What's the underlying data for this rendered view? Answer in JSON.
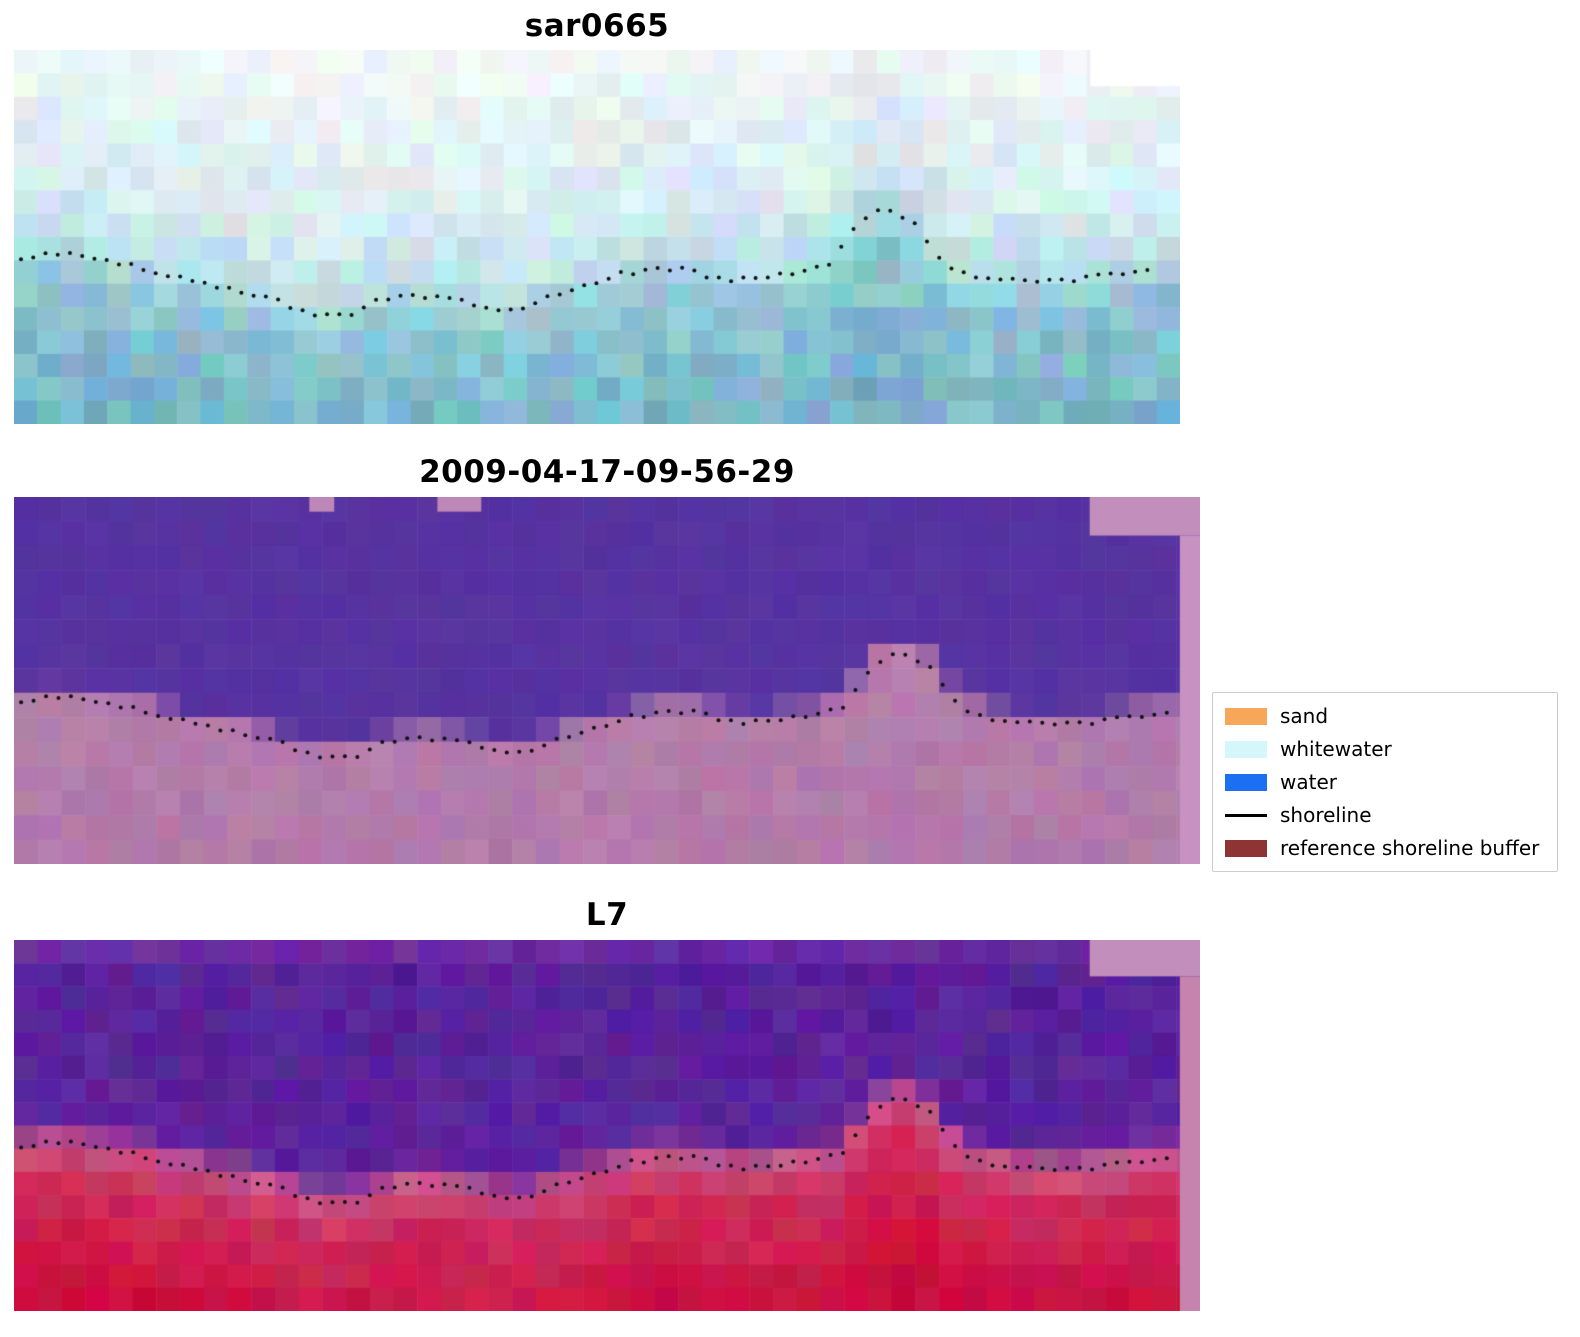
{
  "legend": {
    "items": [
      {
        "label": "sand",
        "color": "#f8a75a",
        "type": "patch"
      },
      {
        "label": "whitewater",
        "color": "#d5f6fa",
        "type": "patch"
      },
      {
        "label": "water",
        "color": "#1a6ff2",
        "type": "patch"
      },
      {
        "label": "shoreline",
        "color": "#000000",
        "type": "line"
      },
      {
        "label": "reference shoreline buffer",
        "color": "#8e3434",
        "type": "patch"
      }
    ]
  },
  "chart_data": {
    "type": "heatmap",
    "description": "Three-panel shoreline-detection figure: pixelated SAR image (sar0665), classified optical image (2009-04-17-09-56-29) and Landsat-7 (L7) image, each overlaid with the same dotted detected shoreline; classified panels show water class (purple) above and reference shoreline buffer (pink/red) below.",
    "shoreline": {
      "x": [
        0.0,
        0.03,
        0.06,
        0.1,
        0.14,
        0.18,
        0.22,
        0.26,
        0.295,
        0.315,
        0.345,
        0.375,
        0.41,
        0.43,
        0.46,
        0.49,
        0.52,
        0.55,
        0.575,
        0.6,
        0.63,
        0.655,
        0.68,
        0.7,
        0.715,
        0.73,
        0.75,
        0.77,
        0.785,
        0.8,
        0.82,
        0.85,
        0.88,
        0.91,
        0.94,
        0.965,
        1.0
      ],
      "y": [
        0.56,
        0.545,
        0.55,
        0.575,
        0.61,
        0.635,
        0.665,
        0.715,
        0.7,
        0.665,
        0.655,
        0.665,
        0.69,
        0.695,
        0.66,
        0.63,
        0.6,
        0.585,
        0.585,
        0.61,
        0.615,
        0.6,
        0.595,
        0.57,
        0.5,
        0.445,
        0.425,
        0.455,
        0.52,
        0.575,
        0.6,
        0.615,
        0.62,
        0.615,
        0.6,
        0.59,
        0.585
      ]
    },
    "panels": [
      {
        "id": "sar0665",
        "title": "sar0665",
        "seed": 11,
        "grid": {
          "cols": 50,
          "rows": 16
        },
        "stops": [
          {
            "d": -0.6,
            "c": [
              241,
              248,
              249
            ],
            "j": 9
          },
          {
            "d": -0.18,
            "c": [
              215,
              236,
              241
            ],
            "j": 14
          },
          {
            "d": -0.02,
            "c": [
              183,
              221,
              229
            ],
            "j": 16
          },
          {
            "d": 0.08,
            "c": [
              142,
              198,
              212
            ],
            "j": 18
          },
          {
            "d": 0.45,
            "c": [
              117,
              178,
              197
            ],
            "j": 21
          }
        ],
        "overlays": [
          {
            "x": 0.923,
            "y": 0,
            "w": 0.077,
            "h": 0.097,
            "color": "#ffffff"
          }
        ],
        "dots": {
          "from": 0.006,
          "to": 0.978,
          "step": 0.0105,
          "radius": 2,
          "color": "#111111"
        }
      },
      {
        "id": "cls",
        "title": "2009-04-17-09-56-29",
        "seed": 23,
        "grid": {
          "cols": 50,
          "rows": 15
        },
        "stops": [
          {
            "d": -1.0,
            "c": [
              87,
              51,
              161
            ],
            "j": 4
          },
          {
            "d": -0.05,
            "c": [
              87,
              51,
              161
            ],
            "j": 4
          },
          {
            "d": -0.01,
            "c": [
              181,
              126,
              172
            ],
            "j": 8
          },
          {
            "d": 1.0,
            "c": [
              174,
              118,
              166
            ],
            "j": 9
          }
        ],
        "overlays": [
          {
            "x": 0.907,
            "y": 0,
            "w": 0.093,
            "h": 0.105,
            "color": "#c28fbc"
          },
          {
            "x": 0.983,
            "y": 0.105,
            "w": 0.017,
            "h": 0.895,
            "color": "#c791c1"
          },
          {
            "x": 0.249,
            "y": 0,
            "w": 0.021,
            "h": 0.04,
            "color": "#bd87b7"
          },
          {
            "x": 0.357,
            "y": 0,
            "w": 0.037,
            "h": 0.04,
            "color": "#bd87b7"
          }
        ],
        "dots": {
          "from": 0.006,
          "to": 0.972,
          "step": 0.0105,
          "radius": 2,
          "color": "#111111"
        }
      },
      {
        "id": "l7",
        "title": "L7",
        "seed": 37,
        "grid": {
          "cols": 50,
          "rows": 16
        },
        "top_band": {
          "h": 0.075,
          "c": [
            151,
            62,
            183
          ],
          "mix": 0.55
        },
        "stops": [
          {
            "d": -1.0,
            "c": [
              82,
              34,
              152
            ],
            "j": 12
          },
          {
            "d": -0.07,
            "c": [
              92,
              36,
              156
            ],
            "j": 12
          },
          {
            "d": -0.005,
            "c": [
              198,
              88,
              138
            ],
            "j": 14
          },
          {
            "d": 0.1,
            "c": [
              206,
              45,
              92
            ],
            "j": 12
          },
          {
            "d": 0.4,
            "c": [
              203,
              14,
              62
            ],
            "j": 10
          },
          {
            "d": 1.0,
            "c": [
              196,
              10,
              58
            ],
            "j": 10
          }
        ],
        "overlays": [
          {
            "x": 0.907,
            "y": 0,
            "w": 0.093,
            "h": 0.098,
            "color": "#c28fbc"
          },
          {
            "x": 0.983,
            "y": 0.098,
            "w": 0.017,
            "h": 0.902,
            "color": "#c583ad"
          }
        ],
        "dots": {
          "from": 0.006,
          "to": 0.972,
          "step": 0.0105,
          "radius": 2,
          "color": "#111111"
        }
      }
    ]
  }
}
